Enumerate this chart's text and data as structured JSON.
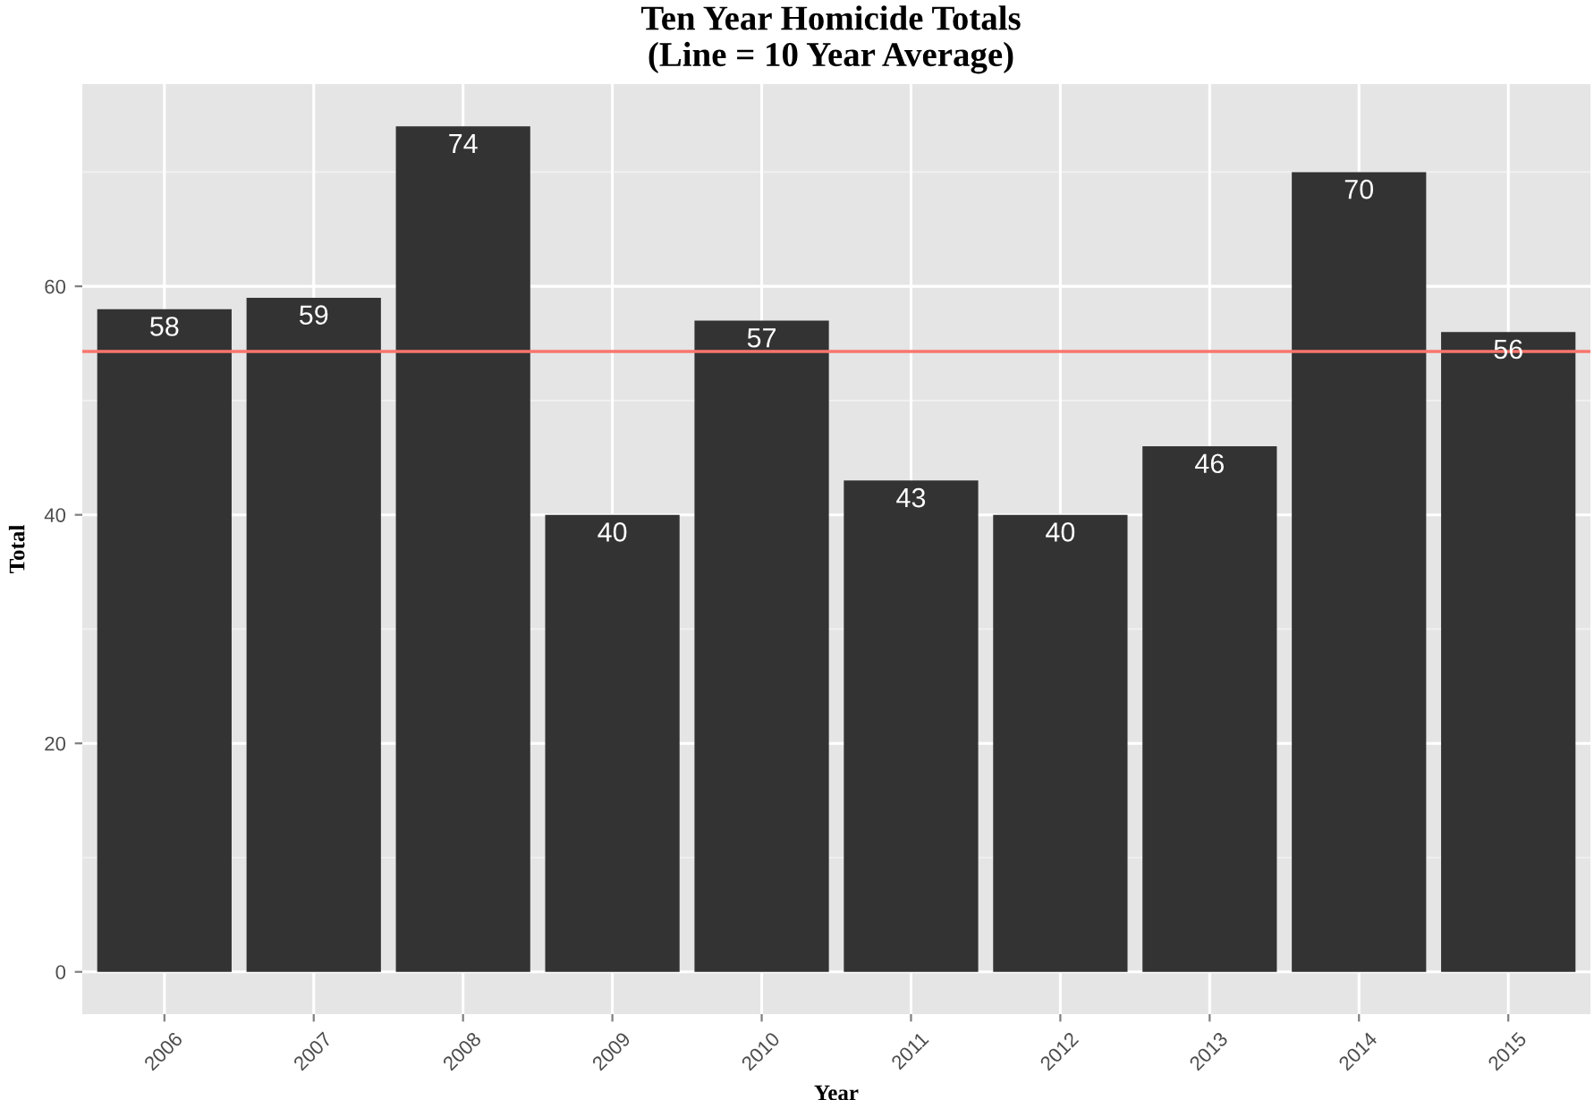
{
  "chart_data": {
    "type": "bar",
    "title": "Ten Year Homicide Totals\n(Line = 10 Year Average)",
    "xlabel": "Year",
    "ylabel": "Total",
    "categories": [
      "2006",
      "2007",
      "2008",
      "2009",
      "2010",
      "2011",
      "2012",
      "2013",
      "2014",
      "2015"
    ],
    "values": [
      58,
      59,
      74,
      40,
      57,
      43,
      40,
      46,
      70,
      56
    ],
    "color": "#333333",
    "data_labels": true,
    "ylim": [
      -3.7,
      77.7
    ],
    "yticks": [
      0,
      20,
      40,
      60
    ],
    "grid": true,
    "legend": false,
    "ref_lines": [
      {
        "axis": "y",
        "value": 54.3,
        "label": null,
        "color": "#f8766d"
      }
    ]
  }
}
